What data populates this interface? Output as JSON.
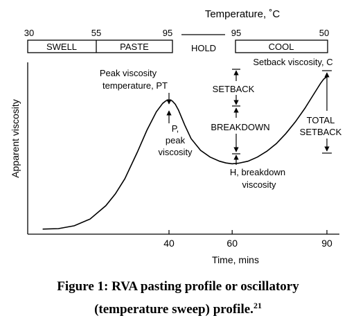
{
  "chart_data": {
    "type": "line",
    "title": "",
    "xlabel": "Time, mins",
    "ylabel": "Apparent viscosity",
    "x_ticks": [
      40,
      60,
      90
    ],
    "x_range": [
      0,
      90
    ],
    "top_axis": {
      "title": "Temperature, ˚C",
      "ticks": [
        "30",
        "55",
        "95",
        "95",
        "50"
      ],
      "stages": [
        {
          "label": "SWELL"
        },
        {
          "label": "PASTE"
        },
        {
          "label": "HOLD"
        },
        {
          "label": "COOL"
        }
      ]
    },
    "series": [
      {
        "x": [
          0,
          5,
          10,
          15,
          20,
          23,
          26,
          30,
          33,
          36,
          38,
          39,
          40,
          41,
          42,
          43,
          45,
          47,
          50,
          53,
          56,
          58,
          60,
          62,
          65,
          68,
          71,
          74,
          77,
          80,
          83,
          85,
          87,
          88,
          89,
          90
        ],
        "y": [
          3,
          3.3,
          5,
          9,
          17,
          24,
          33,
          49,
          62,
          73,
          78,
          79.5,
          80,
          79.5,
          77.5,
          74,
          65,
          57,
          50,
          46,
          43.5,
          42.5,
          42,
          42.3,
          43.5,
          46,
          49.5,
          54,
          60,
          67,
          75,
          81,
          87,
          90,
          92.5,
          94
        ]
      }
    ],
    "annotations": {
      "peak_temp": [
        "Peak viscosity",
        "temperature, PT"
      ],
      "peak": [
        "P,",
        "peak",
        "viscosity"
      ],
      "breakdown_point": [
        "H, breakdown",
        "viscosity"
      ],
      "setback_viscosity": "Setback viscosity, C",
      "setback": "SETBACK",
      "breakdown": "BREAKDOWN",
      "total_setback": [
        "TOTAL",
        "SETBACK"
      ]
    }
  },
  "caption": {
    "line1": "Figure 1: RVA pasting profile or oscillatory",
    "line2": "(temperature sweep) profile.",
    "ref": "21"
  }
}
